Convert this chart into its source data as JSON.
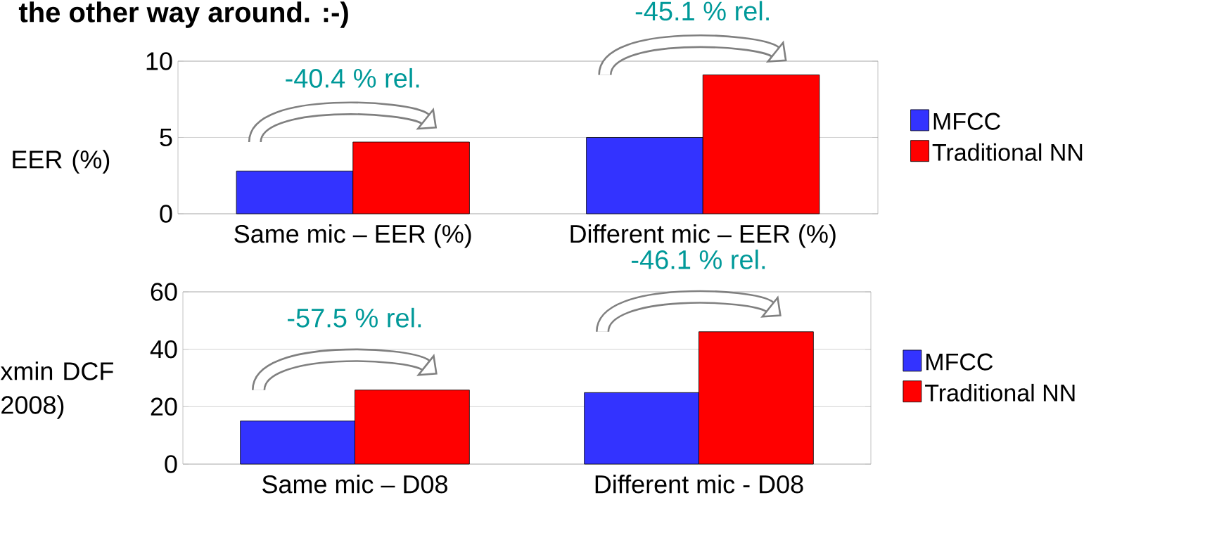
{
  "chart_data": [
    {
      "type": "bar",
      "title": "the other way around. :-)",
      "ylabel": "EER (%)",
      "categories": [
        "Same mic – EER (%)",
        "Different mic – EER (%)"
      ],
      "series": [
        {
          "name": "MFCC",
          "color": "#3333ff",
          "values": [
            2.8,
            5.0
          ]
        },
        {
          "name": "Traditional NN",
          "color": "#ff0000",
          "values": [
            4.7,
            9.1
          ]
        }
      ],
      "ylim": [
        0,
        10
      ],
      "yticks": [
        0,
        5,
        10
      ],
      "grid": "y",
      "legend": "right",
      "annotations": [
        "-40.4 % rel.",
        "-45.1 % rel."
      ]
    },
    {
      "type": "bar",
      "ylabel": "xmin DCF 2008)",
      "categories": [
        "Same mic – D08",
        "Different mic - D08"
      ],
      "series": [
        {
          "name": "MFCC",
          "color": "#3333ff",
          "values": [
            15.0,
            24.9
          ]
        },
        {
          "name": "Traditional NN",
          "color": "#ff0000",
          "values": [
            25.8,
            46.1
          ]
        }
      ],
      "ylim": [
        0,
        60
      ],
      "yticks": [
        0,
        20,
        40,
        60
      ],
      "grid": "y",
      "legend": "right",
      "annotations": [
        "-57.5 % rel.",
        "-46.1 % rel."
      ]
    }
  ]
}
